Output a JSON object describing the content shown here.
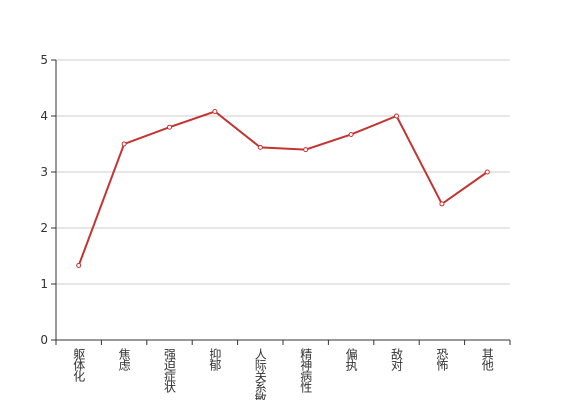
{
  "chart_data": {
    "type": "line",
    "categories": [
      "躯体化",
      "焦虑",
      "强迫症状",
      "抑郁",
      "人际关系敏感",
      "精神病性",
      "偏执",
      "敌对",
      "恐怖",
      "其他"
    ],
    "values": [
      1.33,
      3.5,
      3.8,
      4.08,
      3.44,
      3.4,
      3.67,
      4.0,
      2.43,
      3.0
    ],
    "color": "#c23531",
    "ylim": [
      0,
      5
    ],
    "yticks": [
      0,
      1,
      2,
      3,
      4,
      5
    ],
    "grid": true
  }
}
